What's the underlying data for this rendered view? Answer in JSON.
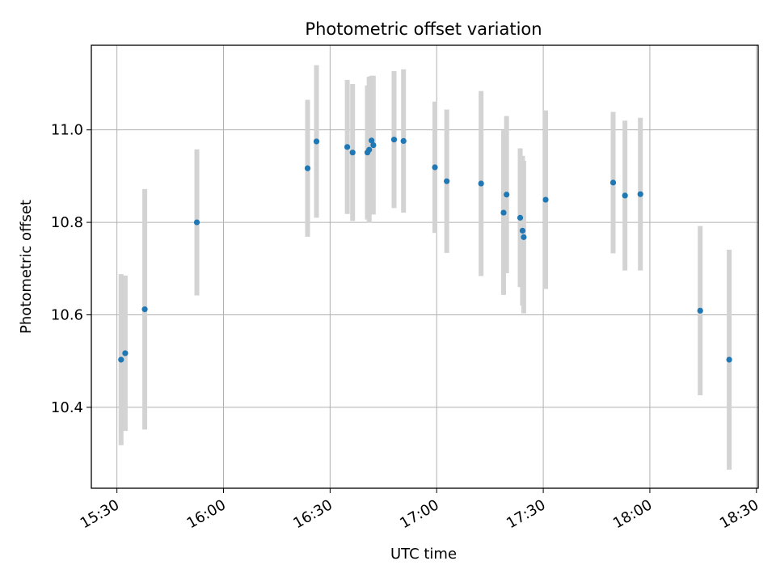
{
  "chart_data": {
    "type": "scatter",
    "title": "Photometric offset variation",
    "xlabel": "UTC time",
    "ylabel": "Photometric offset",
    "x_tick_labels": [
      "15:30",
      "16:00",
      "16:30",
      "17:00",
      "17:30",
      "18:00",
      "18:30"
    ],
    "x_tick_minutes": [
      930,
      960,
      990,
      1020,
      1050,
      1080,
      1110
    ],
    "xlim_minutes": [
      922.8,
      1110.5
    ],
    "y_tick_labels": [
      "10.4",
      "10.6",
      "10.8",
      "11.0"
    ],
    "y_tick_values": [
      10.4,
      10.6,
      10.8,
      11.0
    ],
    "ylim": [
      10.225,
      11.183
    ],
    "grid": true,
    "point_color": "#1f77b4",
    "errorbar_color": "#d3d3d3",
    "points": [
      {
        "t": "15:31:10",
        "y": 10.503,
        "err": 0.185
      },
      {
        "t": "15:32:20",
        "y": 10.517,
        "err": 0.168
      },
      {
        "t": "15:37:50",
        "y": 10.612,
        "err": 0.26
      },
      {
        "t": "15:52:30",
        "y": 10.8,
        "err": 0.158
      },
      {
        "t": "16:23:40",
        "y": 10.917,
        "err": 0.148
      },
      {
        "t": "16:26:10",
        "y": 10.975,
        "err": 0.165
      },
      {
        "t": "16:34:50",
        "y": 10.963,
        "err": 0.145
      },
      {
        "t": "16:36:20",
        "y": 10.951,
        "err": 0.148
      },
      {
        "t": "16:40:30",
        "y": 10.951,
        "err": 0.145
      },
      {
        "t": "16:41:00",
        "y": 10.957,
        "err": 0.158
      },
      {
        "t": "16:41:40",
        "y": 10.977,
        "err": 0.14
      },
      {
        "t": "16:42:10",
        "y": 10.967,
        "err": 0.15
      },
      {
        "t": "16:48:00",
        "y": 10.979,
        "err": 0.148
      },
      {
        "t": "16:50:40",
        "y": 10.976,
        "err": 0.155
      },
      {
        "t": "16:59:30",
        "y": 10.919,
        "err": 0.142
      },
      {
        "t": "17:02:50",
        "y": 10.889,
        "err": 0.155
      },
      {
        "t": "17:12:30",
        "y": 10.884,
        "err": 0.2
      },
      {
        "t": "17:18:50",
        "y": 10.821,
        "err": 0.178
      },
      {
        "t": "17:19:40",
        "y": 10.86,
        "err": 0.17
      },
      {
        "t": "17:23:30",
        "y": 10.81,
        "err": 0.15
      },
      {
        "t": "17:24:10",
        "y": 10.782,
        "err": 0.162
      },
      {
        "t": "17:24:30",
        "y": 10.768,
        "err": 0.165
      },
      {
        "t": "17:30:40",
        "y": 10.849,
        "err": 0.193
      },
      {
        "t": "17:49:40",
        "y": 10.886,
        "err": 0.153
      },
      {
        "t": "17:53:00",
        "y": 10.858,
        "err": 0.162
      },
      {
        "t": "17:57:20",
        "y": 10.861,
        "err": 0.165
      },
      {
        "t": "18:14:10",
        "y": 10.609,
        "err": 0.183
      },
      {
        "t": "18:22:20",
        "y": 10.503,
        "err": 0.238
      }
    ]
  }
}
